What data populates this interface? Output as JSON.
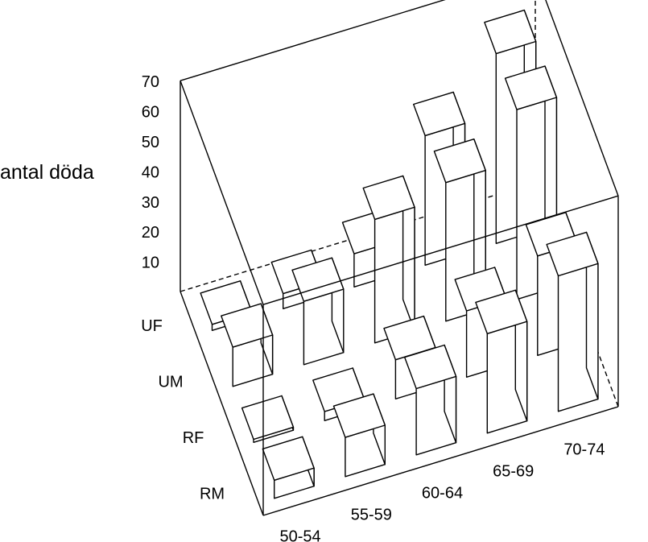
{
  "chart_data": {
    "type": "bar3d",
    "zlabel": "antal döda",
    "zticks": [
      "10",
      "20",
      "30",
      "40",
      "50",
      "60",
      "70"
    ],
    "zlim": [
      0,
      70
    ],
    "x_categories": [
      "50-54",
      "55-59",
      "60-64",
      "65-69",
      "70-74"
    ],
    "y_categories": [
      "RM",
      "RF",
      "UM",
      "UF"
    ],
    "series": [
      {
        "name": "RM",
        "values": [
          6,
          13,
          22,
          33,
          45
        ]
      },
      {
        "name": "RF",
        "values": [
          1,
          3,
          13,
          22,
          33
        ]
      },
      {
        "name": "UM",
        "values": [
          13,
          21,
          41,
          46,
          63
        ]
      },
      {
        "name": "UF",
        "values": [
          2,
          5,
          11,
          43,
          63
        ]
      }
    ]
  }
}
